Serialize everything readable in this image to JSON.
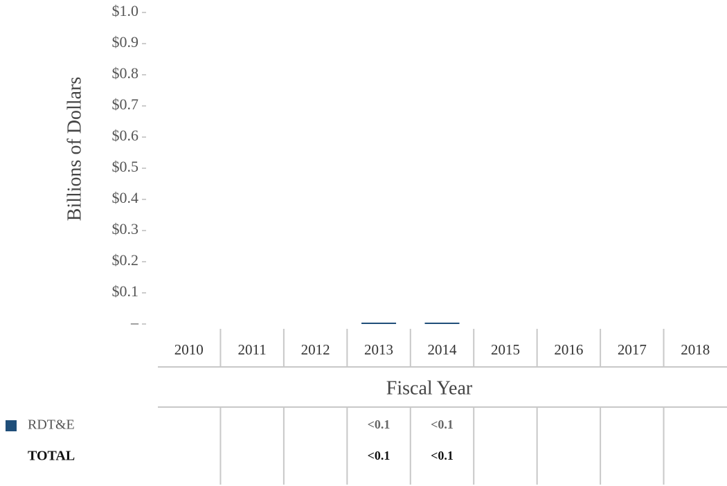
{
  "chart_data": {
    "type": "bar",
    "y_label": "Billions of Dollars",
    "x_label": "Fiscal Year",
    "categories": [
      "2010",
      "2011",
      "2012",
      "2013",
      "2014",
      "2015",
      "2016",
      "2017",
      "2018"
    ],
    "series": [
      {
        "name": "RDT&E",
        "color": "#1f4e79",
        "values": [
          null,
          null,
          null,
          0.004,
          0.004,
          null,
          null,
          null,
          null
        ],
        "value_labels": [
          null,
          null,
          null,
          "<0.1",
          "<0.1",
          null,
          null,
          null,
          null
        ]
      }
    ],
    "total": {
      "name": "TOTAL",
      "values": [
        null,
        null,
        null,
        0.004,
        0.004,
        null,
        null,
        null,
        null
      ],
      "value_labels": [
        null,
        null,
        null,
        "<0.1",
        "<0.1",
        null,
        null,
        null,
        null
      ]
    },
    "ylim": [
      0,
      1.0
    ],
    "yticks": [
      {
        "value": 0,
        "label": "–"
      },
      {
        "value": 0.1,
        "label": "$0.1"
      },
      {
        "value": 0.2,
        "label": "$0.2"
      },
      {
        "value": 0.3,
        "label": "$0.3"
      },
      {
        "value": 0.4,
        "label": "$0.4"
      },
      {
        "value": 0.5,
        "label": "$0.5"
      },
      {
        "value": 0.6,
        "label": "$0.6"
      },
      {
        "value": 0.7,
        "label": "$0.7"
      },
      {
        "value": 0.8,
        "label": "$0.8"
      },
      {
        "value": 0.9,
        "label": "$0.9"
      },
      {
        "value": 1.0,
        "label": "$1.0"
      }
    ]
  }
}
